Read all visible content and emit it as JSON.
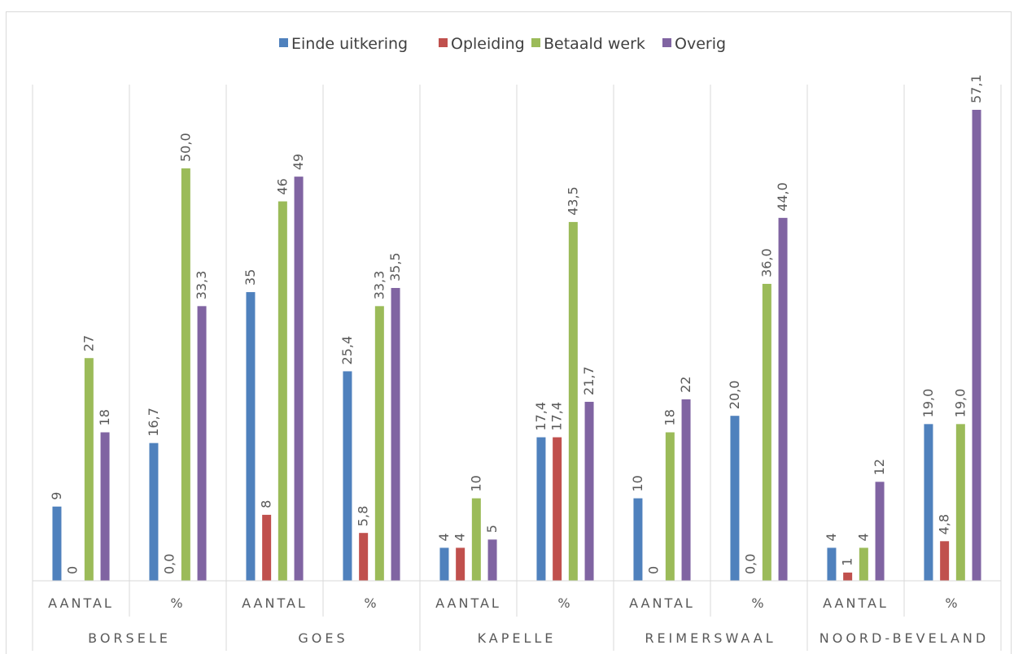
{
  "chart_data": {
    "type": "bar",
    "title": "",
    "xlabel": "",
    "ylabel": "",
    "ylim": [
      0,
      60
    ],
    "grid": false,
    "legend_position": "top",
    "groups": [
      "BORSELE",
      "GOES",
      "KAPELLE",
      "REIMERSWAAL",
      "NOORD-BEVELAND"
    ],
    "subcategories": [
      "AANTAL",
      "%"
    ],
    "categories": [
      "BORSELE AANTAL",
      "BORSELE %",
      "GOES AANTAL",
      "GOES %",
      "KAPELLE AANTAL",
      "KAPELLE %",
      "REIMERSWAAL AANTAL",
      "REIMERSWAAL %",
      "NOORD-BEVELAND AANTAL",
      "NOORD-BEVELAND %"
    ],
    "series": [
      {
        "name": "Einde uitkering",
        "color": "#4f81bd",
        "values": [
          9,
          16.7,
          35,
          25.4,
          4,
          17.4,
          10,
          20.0,
          4,
          19.0
        ],
        "labels": [
          "9",
          "16,7",
          "35",
          "25,4",
          "4",
          "17,4",
          "10",
          "20,0",
          "4",
          "19,0"
        ]
      },
      {
        "name": "Opleiding",
        "color": "#c0504d",
        "values": [
          0,
          0.0,
          8,
          5.8,
          4,
          17.4,
          0,
          0.0,
          1,
          4.8
        ],
        "labels": [
          "0",
          "0,0",
          "8",
          "5,8",
          "4",
          "17,4",
          "0",
          "0,0",
          "1",
          "4,8"
        ]
      },
      {
        "name": "Betaald werk",
        "color": "#9bbb59",
        "values": [
          27,
          50.0,
          46,
          33.3,
          10,
          43.5,
          18,
          36.0,
          4,
          19.0
        ],
        "labels": [
          "27",
          "50,0",
          "46",
          "33,3",
          "10",
          "43,5",
          "18",
          "36,0",
          "4",
          "19,0"
        ]
      },
      {
        "name": "Overig",
        "color": "#8064a2",
        "values": [
          18,
          33.3,
          49,
          35.5,
          5,
          21.7,
          22,
          44.0,
          12,
          57.1
        ],
        "labels": [
          "18",
          "33,3",
          "49",
          "35,5",
          "5",
          "21,7",
          "22",
          "44,0",
          "12",
          "57,1"
        ]
      }
    ]
  }
}
